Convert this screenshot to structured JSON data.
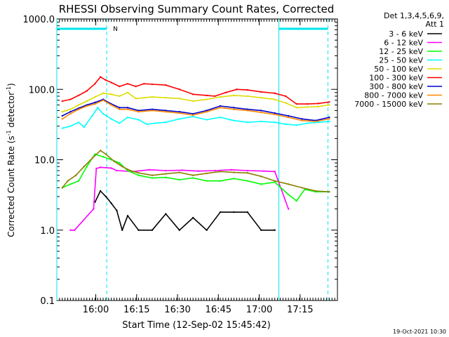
{
  "chart_data": {
    "type": "line",
    "title": "RHESSI Observing Summary Count Rates, Corrected",
    "xlabel": "Start Time (12-Sep-02 15:45:42)",
    "ylabel_main": "Corrected Count Rate (s",
    "ylabel_sup1": "-1",
    "ylabel_mid": " detector",
    "ylabel_sup2": "-1",
    "ylabel_end": ")",
    "y_scale": "log",
    "ylim": [
      0.1,
      1000
    ],
    "xlim_minutes": [
      0,
      103
    ],
    "x_ticks": [
      {
        "t": 14.3,
        "label": "16:00"
      },
      {
        "t": 29.3,
        "label": "16:15"
      },
      {
        "t": 44.3,
        "label": "16:30"
      },
      {
        "t": 59.3,
        "label": "16:45"
      },
      {
        "t": 74.3,
        "label": "17:00"
      },
      {
        "t": 89.3,
        "label": "17:15"
      }
    ],
    "y_ticks": [
      {
        "v": 0.1,
        "label": "0.1"
      },
      {
        "v": 1,
        "label": "1.0"
      },
      {
        "v": 10,
        "label": "10.0"
      },
      {
        "v": 100,
        "label": "100.0"
      },
      {
        "v": 1000,
        "label": "1000.0"
      }
    ],
    "legend_header": [
      "Det 1,3,4,5,6,9,",
      "Att 1"
    ],
    "footer_date": "19-Oct-2021 10:30",
    "night_marks": [
      {
        "start": 0,
        "end": 18.3,
        "label": "N"
      },
      {
        "start": 81.5,
        "end": 99.5,
        "label": ""
      }
    ],
    "markers_minutes": [
      0,
      18.3,
      81.5,
      99.5
    ],
    "series": [
      {
        "name": "3 - 6 keV",
        "color": "#000000",
        "x": [
          14,
          16,
          18,
          20,
          22,
          24,
          26,
          30,
          35,
          40,
          45,
          50,
          55,
          60,
          65,
          70,
          75,
          80
        ],
        "y": [
          2.5,
          3.6,
          3.0,
          2.4,
          1.9,
          1.0,
          1.6,
          1.0,
          1.0,
          1.7,
          1.0,
          1.5,
          1.0,
          1.8,
          1.8,
          1.8,
          1.0,
          1.0
        ]
      },
      {
        "name": "6 - 12 keV",
        "color": "#ff00ff",
        "x": [
          5,
          6.5,
          13.5,
          14.5,
          16,
          20,
          22,
          28,
          34,
          40,
          46,
          52,
          58,
          64,
          70,
          76,
          80,
          85
        ],
        "y": [
          1.0,
          1.0,
          2.0,
          7.5,
          7.8,
          7.6,
          7.0,
          6.8,
          7.2,
          7.0,
          7.1,
          6.9,
          7.0,
          7.2,
          7.0,
          6.9,
          6.8,
          2.0
        ]
      },
      {
        "name": "12 - 25 keV",
        "color": "#00ff00",
        "x": [
          2,
          5,
          8,
          11,
          14,
          17,
          20,
          23,
          26,
          30,
          35,
          40,
          45,
          50,
          55,
          60,
          65,
          70,
          75,
          80,
          85,
          88,
          91,
          95,
          100
        ],
        "y": [
          4.0,
          4.5,
          5.0,
          8.0,
          12.0,
          11.0,
          10.0,
          9.0,
          7.0,
          6.0,
          5.5,
          5.6,
          5.2,
          5.5,
          5.0,
          5.0,
          5.4,
          5.0,
          4.5,
          4.8,
          3.2,
          2.6,
          3.8,
          3.5,
          3.5
        ]
      },
      {
        "name": "25 - 50 keV",
        "color": "#00ffff",
        "x": [
          2,
          5,
          8,
          10,
          13,
          15,
          17,
          20,
          23,
          26,
          30,
          33,
          36,
          40,
          45,
          50,
          55,
          60,
          65,
          70,
          75,
          80,
          84,
          88,
          92,
          96,
          100
        ],
        "y": [
          28,
          30,
          34,
          29,
          42,
          55,
          45,
          38,
          33,
          40,
          37,
          32,
          33,
          34,
          38,
          41,
          37,
          40,
          36,
          34,
          35,
          34,
          32,
          31,
          33,
          34,
          35
        ]
      },
      {
        "name": "50 - 100 keV",
        "color": "#dddd00",
        "x": [
          2,
          5,
          8,
          11,
          14,
          17,
          20,
          23,
          26,
          29,
          32,
          35,
          40,
          45,
          50,
          55,
          60,
          65,
          70,
          75,
          80,
          84,
          88,
          92,
          96,
          100
        ],
        "y": [
          48,
          52,
          60,
          68,
          78,
          88,
          85,
          80,
          90,
          74,
          76,
          78,
          76,
          74,
          68,
          72,
          78,
          82,
          80,
          76,
          72,
          64,
          55,
          56,
          57,
          60
        ]
      },
      {
        "name": "100 - 300 keV",
        "color": "#ff0000",
        "x": [
          2,
          5,
          8,
          11,
          14,
          16,
          18,
          20,
          23,
          26,
          29,
          32,
          35,
          40,
          45,
          50,
          55,
          58,
          62,
          66,
          70,
          75,
          80,
          84,
          88,
          92,
          96,
          100
        ],
        "y": [
          68,
          72,
          82,
          95,
          120,
          150,
          135,
          125,
          110,
          120,
          110,
          120,
          118,
          115,
          100,
          85,
          82,
          80,
          90,
          100,
          98,
          92,
          88,
          80,
          62,
          62,
          63,
          66
        ]
      },
      {
        "name": "300 - 800 keV",
        "color": "#0000cc",
        "x": [
          2,
          5,
          8,
          11,
          14,
          17,
          20,
          23,
          26,
          30,
          35,
          40,
          45,
          50,
          55,
          60,
          65,
          70,
          75,
          80,
          85,
          90,
          95,
          100
        ],
        "y": [
          42,
          48,
          54,
          60,
          65,
          72,
          62,
          55,
          55,
          50,
          52,
          50,
          48,
          45,
          50,
          58,
          55,
          52,
          50,
          46,
          42,
          38,
          36,
          40
        ]
      },
      {
        "name": "800 - 7000 keV",
        "color": "#ff8800",
        "x": [
          2,
          5,
          8,
          11,
          14,
          17,
          20,
          23,
          26,
          30,
          35,
          40,
          45,
          50,
          55,
          60,
          65,
          70,
          75,
          80,
          85,
          90,
          95,
          100
        ],
        "y": [
          38,
          45,
          52,
          58,
          62,
          70,
          60,
          52,
          52,
          48,
          50,
          48,
          46,
          43,
          48,
          55,
          52,
          50,
          47,
          44,
          40,
          36,
          35,
          38
        ]
      },
      {
        "name": "7000 - 15000 keV",
        "color": "#8b8000",
        "x": [
          2,
          4,
          7,
          10,
          13,
          16,
          18,
          21,
          24,
          27,
          30,
          35,
          40,
          45,
          50,
          55,
          60,
          65,
          70,
          75,
          80,
          85,
          90,
          95,
          100
        ],
        "y": [
          4.0,
          5.0,
          6.0,
          8.0,
          10.5,
          13.5,
          12.0,
          9.5,
          8.0,
          7.0,
          6.5,
          6.0,
          6.3,
          6.6,
          6.0,
          6.4,
          6.8,
          6.6,
          6.5,
          5.8,
          5.0,
          4.5,
          4.0,
          3.6,
          3.5
        ]
      }
    ]
  }
}
